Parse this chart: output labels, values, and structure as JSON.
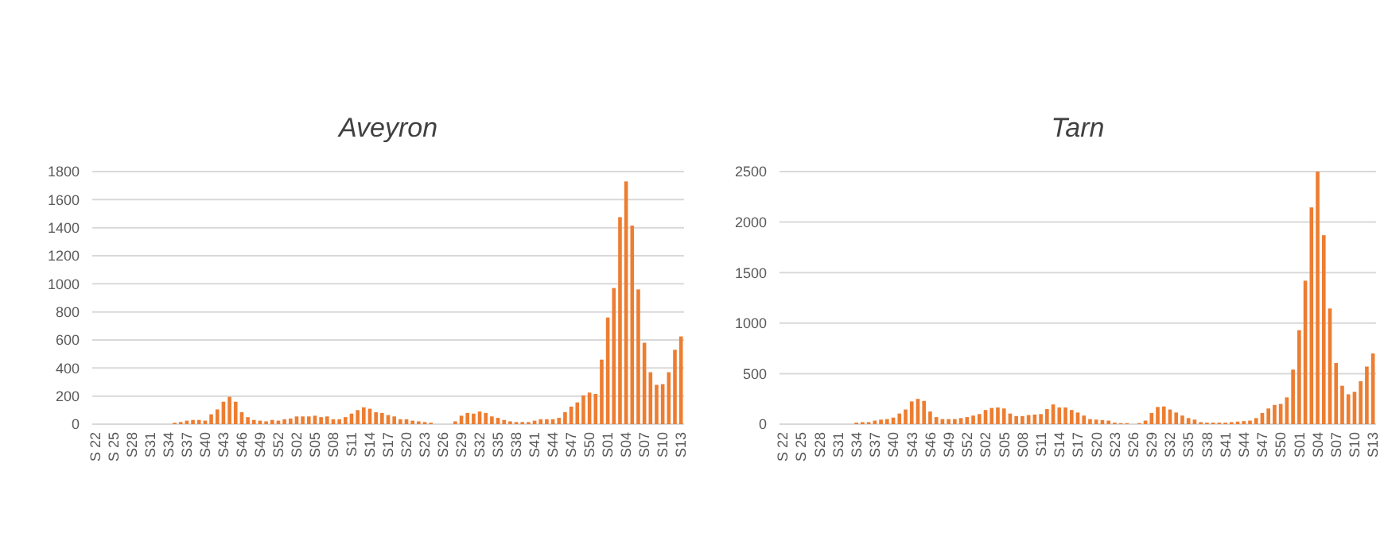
{
  "chart_data": [
    {
      "type": "bar",
      "title": "Aveyron",
      "categories": [
        "S 22",
        null,
        null,
        "S 25",
        null,
        null,
        "S28",
        null,
        null,
        "S31",
        null,
        null,
        "S34",
        null,
        null,
        "S37",
        null,
        null,
        "S40",
        null,
        null,
        "S43",
        null,
        null,
        "S46",
        null,
        null,
        "S49",
        null,
        null,
        "S52",
        null,
        null,
        "S02",
        null,
        null,
        "S05",
        null,
        null,
        "S08",
        null,
        null,
        "S11",
        null,
        null,
        "S14",
        null,
        null,
        "S17",
        null,
        null,
        "S20",
        null,
        null,
        "S23",
        null,
        null,
        "S26",
        null,
        null,
        "S29",
        null,
        null,
        "S32",
        null,
        null,
        "S35",
        null,
        null,
        "S38",
        null,
        null,
        "S41",
        null,
        null,
        "S44",
        null,
        null,
        "S47",
        null,
        null,
        "S50",
        null,
        null,
        "S01",
        null,
        null,
        "S04",
        null,
        null,
        "S07",
        null,
        null,
        "S10",
        null,
        null,
        "S13"
      ],
      "values": [
        0,
        0,
        0,
        0,
        0,
        0,
        0,
        0,
        0,
        0,
        0,
        0,
        null,
        10,
        15,
        25,
        30,
        30,
        25,
        70,
        105,
        160,
        195,
        160,
        85,
        50,
        30,
        25,
        20,
        30,
        25,
        35,
        40,
        55,
        55,
        55,
        60,
        50,
        55,
        35,
        35,
        50,
        75,
        100,
        120,
        110,
        85,
        80,
        65,
        55,
        35,
        35,
        25,
        20,
        15,
        10,
        null,
        null,
        null,
        20,
        60,
        80,
        75,
        90,
        80,
        55,
        45,
        30,
        20,
        15,
        15,
        15,
        25,
        35,
        35,
        35,
        45,
        85,
        125,
        155,
        205,
        225,
        215,
        460,
        760,
        970,
        1475,
        1730,
        1415,
        960,
        580,
        370,
        280,
        285,
        370,
        530,
        625
      ],
      "color": "#ed7d31",
      "ylim": [
        0,
        1800
      ],
      "yticks": [
        0,
        200,
        400,
        600,
        800,
        1000,
        1200,
        1400,
        1600,
        1800
      ],
      "grid": "y"
    },
    {
      "type": "bar",
      "title": "Tarn",
      "categories": [
        "S 22",
        null,
        null,
        "S 25",
        null,
        null,
        "S28",
        null,
        null,
        "S31",
        null,
        null,
        "S34",
        null,
        null,
        "S37",
        null,
        null,
        "S40",
        null,
        null,
        "S43",
        null,
        null,
        "S46",
        null,
        null,
        "S49",
        null,
        null,
        "S52",
        null,
        null,
        "S02",
        null,
        null,
        "S05",
        null,
        null,
        "S08",
        null,
        null,
        "S11",
        null,
        null,
        "S14",
        null,
        null,
        "S17",
        null,
        null,
        "S20",
        null,
        null,
        "S23",
        null,
        null,
        "S26",
        null,
        null,
        "S29",
        null,
        null,
        "S32",
        null,
        null,
        "S35",
        null,
        null,
        "S38",
        null,
        null,
        "S41",
        null,
        null,
        "S44",
        null,
        null,
        "S47",
        null,
        null,
        "S50",
        null,
        null,
        "S01",
        null,
        null,
        "S04",
        null,
        null,
        "S07",
        null,
        null,
        "S10",
        null,
        null,
        "S13"
      ],
      "values": [
        0,
        0,
        0,
        0,
        0,
        0,
        0,
        0,
        0,
        0,
        0,
        null,
        15,
        20,
        20,
        35,
        45,
        50,
        65,
        105,
        145,
        225,
        250,
        230,
        125,
        70,
        50,
        50,
        50,
        60,
        70,
        85,
        100,
        140,
        160,
        165,
        155,
        105,
        80,
        80,
        90,
        95,
        100,
        150,
        195,
        165,
        165,
        140,
        115,
        85,
        50,
        45,
        40,
        35,
        15,
        10,
        10,
        null,
        10,
        35,
        110,
        170,
        175,
        145,
        115,
        85,
        60,
        45,
        20,
        15,
        15,
        15,
        15,
        20,
        25,
        30,
        35,
        60,
        110,
        155,
        190,
        200,
        265,
        540,
        930,
        1420,
        2145,
        2500,
        1870,
        1145,
        605,
        380,
        295,
        320,
        425,
        570,
        700
      ],
      "color": "#ed7d31",
      "ylim": [
        0,
        2500
      ],
      "yticks": [
        0,
        500,
        1000,
        1500,
        2000,
        2500
      ],
      "grid": "y"
    }
  ]
}
